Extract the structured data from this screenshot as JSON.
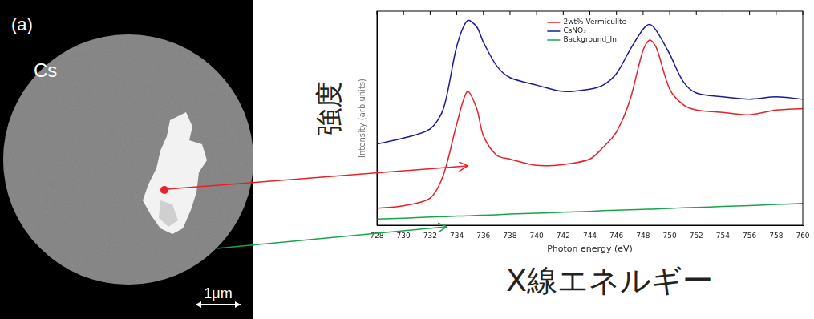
{
  "chart_data": {
    "type": "line",
    "xlabel": "Photon energy (eV)",
    "ylabel": "Intensity (arb.units)",
    "annotations": [
      "強度",
      "X線エネルギー"
    ],
    "x": [
      728,
      730,
      732,
      733,
      734,
      734.8,
      735.5,
      736,
      737,
      738,
      740,
      742,
      744,
      745,
      746,
      747,
      748,
      748.5,
      749,
      750,
      751,
      752,
      754,
      756,
      758,
      760
    ],
    "series": [
      {
        "name": "2wt% Vermiculite",
        "color": "#e8202a",
        "values": [
          8,
          9.1,
          12.7,
          23.6,
          47.3,
          62.5,
          54.5,
          41.8,
          32.7,
          30.9,
          28,
          28.4,
          30.9,
          36.4,
          43.6,
          58.2,
          81.8,
          86.5,
          82.9,
          63.6,
          56.4,
          53.8,
          52.7,
          51.6,
          53.8,
          54.5
        ]
      },
      {
        "name": "CsNO₃",
        "color": "#1a1a9e",
        "values": [
          38,
          40.7,
          45,
          54.5,
          83.6,
          95.6,
          92.7,
          85.5,
          74.5,
          69,
          65.5,
          62.5,
          63.6,
          65.5,
          70.9,
          81.8,
          91.6,
          93.8,
          90.9,
          80,
          67.3,
          61.8,
          60,
          58.9,
          60,
          58.9
        ]
      },
      {
        "name": "Background_In",
        "color": "#1aa34a",
        "values": [
          2.9,
          3.3,
          3.8,
          4,
          4.3,
          4.4,
          4.6,
          4.7,
          4.9,
          5.2,
          5.6,
          6.1,
          6.5,
          6.8,
          7,
          7.2,
          7.4,
          7.5,
          7.6,
          7.9,
          8.1,
          8.3,
          8.8,
          9.2,
          9.7,
          10.2
        ]
      }
    ],
    "xlim": [
      728,
      760
    ],
    "xticks": [
      728,
      730,
      732,
      734,
      736,
      738,
      740,
      742,
      744,
      746,
      748,
      750,
      752,
      754,
      756,
      758,
      760
    ],
    "ylim": [
      0,
      100
    ],
    "yticks": [],
    "tick_labels": "x",
    "grid": false,
    "legend": "top"
  },
  "image": {
    "label": "(a)",
    "element": "Cs",
    "scale_bar": "1μm"
  }
}
